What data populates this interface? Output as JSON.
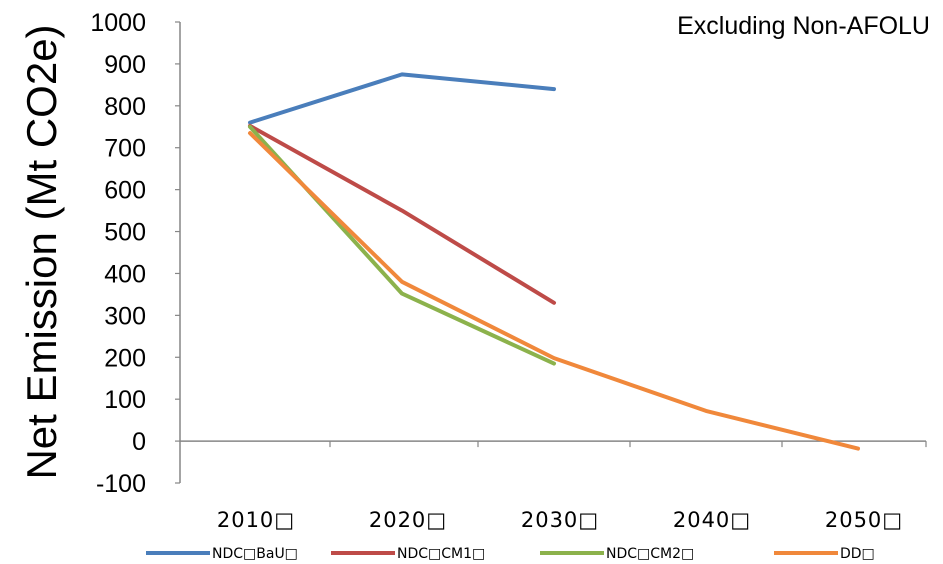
{
  "chart_data": {
    "type": "line",
    "title": "",
    "annotation": "Excluding Non-AFOLU",
    "ylabel": "Net Emission (Mt CO2e)",
    "xlabel": "",
    "ylim": [
      -100,
      1000
    ],
    "yticks": [
      -100,
      0,
      100,
      200,
      300,
      400,
      500,
      600,
      700,
      800,
      900,
      1000
    ],
    "categories": [
      "2010",
      "2020",
      "2030",
      "2040",
      "2050"
    ],
    "category_labels": [
      "2010□",
      "2020□",
      "2030□",
      "2040□",
      "2050□"
    ],
    "grid": false,
    "legend_position": "bottom",
    "series": [
      {
        "name": "NDC□BaU□",
        "color": "#4A7EBB",
        "values": [
          760,
          875,
          840,
          null,
          null
        ]
      },
      {
        "name": "NDC□CM1□",
        "color": "#BE4B48",
        "values": [
          752,
          550,
          330,
          null,
          null
        ]
      },
      {
        "name": "NDC□CM2□",
        "color": "#8CB24C",
        "values": [
          750,
          352,
          185,
          null,
          null
        ]
      },
      {
        "name": "DD□",
        "color": "#F0883B",
        "values": [
          735,
          380,
          198,
          72,
          -18
        ]
      }
    ]
  }
}
